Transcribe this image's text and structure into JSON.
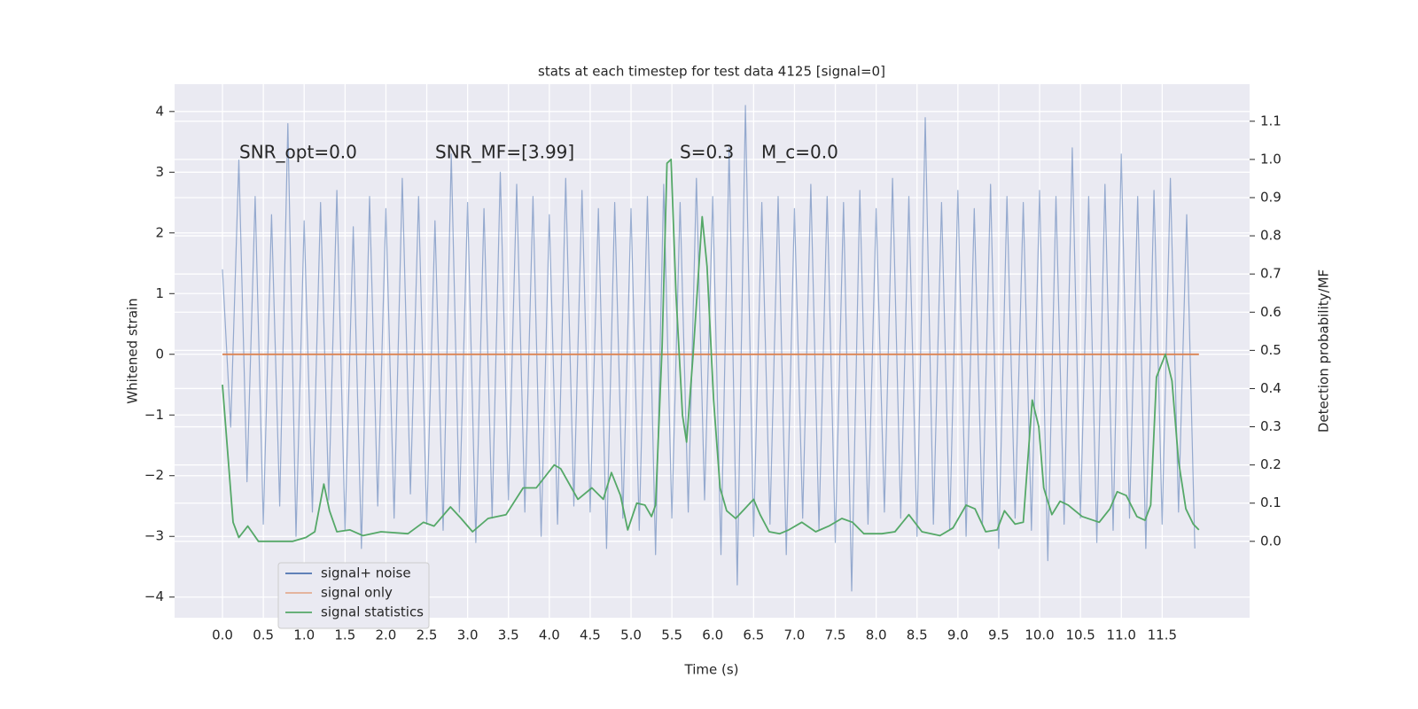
{
  "chart_data": {
    "type": "line",
    "title": "stats at each timestep for test data 4125 [signal=0]",
    "x_label": "Time (s)",
    "y_label": "Whitened strain",
    "y2_label": "Detection probability/MF",
    "annotations": [
      "SNR_opt=0.0",
      "SNR_MF=[3.99]",
      "S=0.3",
      "M_c=0.0"
    ],
    "xlim": [
      -0.586,
      12.57
    ],
    "ylim": [
      -4.34,
      4.45
    ],
    "y2lim": [
      -0.2,
      1.197
    ],
    "xticks": [
      {
        "value": 0,
        "label": "0.0"
      },
      {
        "value": 0.5,
        "label": "0.5"
      },
      {
        "value": 1,
        "label": "1.0"
      },
      {
        "value": 1.5,
        "label": "1.5"
      },
      {
        "value": 2,
        "label": "2.0"
      },
      {
        "value": 2.5,
        "label": "2.5"
      },
      {
        "value": 3,
        "label": "3.0"
      },
      {
        "value": 3.5,
        "label": "3.5"
      },
      {
        "value": 4,
        "label": "4.0"
      },
      {
        "value": 4.5,
        "label": "4.5"
      },
      {
        "value": 5,
        "label": "5.0"
      },
      {
        "value": 5.5,
        "label": "5.5"
      },
      {
        "value": 6,
        "label": "6.0"
      },
      {
        "value": 6.5,
        "label": "6.5"
      },
      {
        "value": 7,
        "label": "7.0"
      },
      {
        "value": 7.5,
        "label": "7.5"
      },
      {
        "value": 8,
        "label": "8.0"
      },
      {
        "value": 8.5,
        "label": "8.5"
      },
      {
        "value": 9,
        "label": "9.0"
      },
      {
        "value": 9.5,
        "label": "9.5"
      },
      {
        "value": 10,
        "label": "10.0"
      },
      {
        "value": 10.5,
        "label": "10.5"
      },
      {
        "value": 11,
        "label": "11.0"
      },
      {
        "value": 11.5,
        "label": "11.5"
      }
    ],
    "yticks": [
      {
        "value": -4,
        "label": "−4"
      },
      {
        "value": -3,
        "label": "−3"
      },
      {
        "value": -2,
        "label": "−2"
      },
      {
        "value": -1,
        "label": "−1"
      },
      0,
      1,
      2,
      3,
      4
    ],
    "y2ticks": [
      {
        "value": 0,
        "label": "0.0"
      },
      {
        "value": 0.1,
        "label": "0.1"
      },
      {
        "value": 0.2,
        "label": "0.2"
      },
      {
        "value": 0.3,
        "label": "0.3"
      },
      {
        "value": 0.4,
        "label": "0.4"
      },
      {
        "value": 0.5,
        "label": "0.5"
      },
      {
        "value": 0.6,
        "label": "0.6"
      },
      {
        "value": 0.7,
        "label": "0.7"
      },
      {
        "value": 0.8,
        "label": "0.8"
      },
      {
        "value": 0.9,
        "label": "0.9"
      },
      {
        "value": 1,
        "label": "1.0"
      },
      {
        "value": 1.1,
        "label": "1.1"
      }
    ],
    "grid": true,
    "legend": "lower left",
    "series": [
      {
        "name": "signal+ noise",
        "color": "#4c72b0",
        "axis": "y",
        "x": [
          0,
          0.1,
          0.2,
          0.3,
          0.4,
          0.5,
          0.6,
          0.7,
          0.8,
          0.9,
          1,
          1.1,
          1.2,
          1.3,
          1.4,
          1.5,
          1.6,
          1.7,
          1.8,
          1.9,
          2,
          2.1,
          2.2,
          2.3,
          2.4,
          2.5,
          2.6,
          2.7,
          2.8,
          2.9,
          3,
          3.1,
          3.2,
          3.3,
          3.4,
          3.5,
          3.6,
          3.7,
          3.8,
          3.9,
          4,
          4.1,
          4.2,
          4.3,
          4.4,
          4.5,
          4.6,
          4.7,
          4.8,
          4.9,
          5,
          5.1,
          5.2,
          5.3,
          5.4,
          5.5,
          5.6,
          5.7,
          5.8,
          5.9,
          6,
          6.1,
          6.2,
          6.3,
          6.4,
          6.5,
          6.6,
          6.7,
          6.8,
          6.9,
          7,
          7.1,
          7.2,
          7.3,
          7.4,
          7.5,
          7.6,
          7.7,
          7.8,
          7.9,
          8,
          8.1,
          8.2,
          8.3,
          8.4,
          8.5,
          8.6,
          8.7,
          8.8,
          8.9,
          9,
          9.1,
          9.2,
          9.3,
          9.4,
          9.5,
          9.6,
          9.7,
          9.8,
          9.9,
          10,
          10.1,
          10.2,
          10.3,
          10.4,
          10.5,
          10.6,
          10.7,
          10.8,
          10.9,
          11,
          11.1,
          11.2,
          11.3,
          11.4,
          11.5,
          11.6,
          11.7,
          11.8,
          11.9
        ],
        "values": [
          1.4,
          -1.2,
          3.2,
          -2.1,
          2.6,
          -2.8,
          2.3,
          -2.5,
          3.8,
          -3.0,
          2.2,
          -2.6,
          2.5,
          -2.4,
          2.7,
          -2.9,
          2.1,
          -3.2,
          2.6,
          -2.5,
          2.4,
          -2.7,
          2.9,
          -2.3,
          2.6,
          -2.8,
          2.2,
          -2.9,
          3.3,
          -2.6,
          2.5,
          -3.1,
          2.4,
          -2.7,
          3.0,
          -2.4,
          2.8,
          -2.6,
          2.6,
          -3.0,
          2.3,
          -2.8,
          2.9,
          -2.5,
          2.7,
          -2.6,
          2.4,
          -3.2,
          2.5,
          -2.7,
          2.4,
          -2.9,
          2.6,
          -3.3,
          2.8,
          -2.7,
          2.5,
          -2.6,
          2.9,
          -2.4,
          2.6,
          -3.3,
          3.4,
          -3.8,
          4.1,
          -3.0,
          2.5,
          -2.8,
          2.6,
          -3.3,
          2.4,
          -2.7,
          2.8,
          -2.9,
          2.6,
          -3.1,
          2.5,
          -3.9,
          2.7,
          -2.8,
          2.4,
          -2.6,
          2.9,
          -2.7,
          2.6,
          -3.0,
          3.9,
          -2.8,
          2.5,
          -2.9,
          2.7,
          -3.0,
          2.4,
          -2.8,
          2.8,
          -3.2,
          2.6,
          -2.7,
          2.5,
          -2.9,
          2.7,
          -3.4,
          2.6,
          -2.8,
          3.4,
          -2.7,
          2.6,
          -3.1,
          2.8,
          -2.9,
          3.3,
          -2.7,
          2.6,
          -3.2,
          2.7,
          -2.8,
          2.9,
          -2.6,
          2.3,
          -3.2
        ]
      },
      {
        "name": "signal only",
        "color": "#dd8452",
        "axis": "y",
        "x": [
          0,
          11.95
        ],
        "values": [
          0,
          0
        ]
      },
      {
        "name": "signal statistics",
        "color": "#55a868",
        "axis": "y2",
        "x": [
          0,
          0.13,
          0.2,
          0.31,
          0.44,
          0.64,
          0.86,
          1.02,
          1.13,
          1.24,
          1.31,
          1.4,
          1.56,
          1.72,
          1.94,
          2.27,
          2.46,
          2.59,
          2.79,
          2.92,
          3.06,
          3.25,
          3.47,
          3.68,
          3.84,
          4.06,
          4.14,
          4.35,
          4.52,
          4.66,
          4.76,
          4.87,
          4.96,
          5.07,
          5.17,
          5.25,
          5.3,
          5.38,
          5.44,
          5.49,
          5.55,
          5.63,
          5.68,
          5.76,
          5.87,
          5.93,
          6.01,
          6.09,
          6.17,
          6.28,
          6.39,
          6.5,
          6.58,
          6.69,
          6.82,
          6.93,
          7.09,
          7.26,
          7.42,
          7.58,
          7.71,
          7.85,
          8.07,
          8.23,
          8.4,
          8.56,
          8.78,
          8.94,
          9.1,
          9.21,
          9.34,
          9.48,
          9.57,
          9.7,
          9.8,
          9.91,
          9.99,
          10.05,
          10.15,
          10.25,
          10.35,
          10.52,
          10.73,
          10.86,
          10.95,
          11.06,
          11.19,
          11.29,
          11.36,
          11.43,
          11.54,
          11.62,
          11.7,
          11.79,
          11.88,
          11.95
        ],
        "values": [
          0.41,
          0.05,
          0.01,
          0.04,
          0.0,
          0.0,
          0.0,
          0.01,
          0.025,
          0.15,
          0.08,
          0.025,
          0.03,
          0.015,
          0.025,
          0.02,
          0.05,
          0.04,
          0.09,
          0.06,
          0.025,
          0.06,
          0.07,
          0.14,
          0.14,
          0.2,
          0.19,
          0.11,
          0.14,
          0.11,
          0.18,
          0.12,
          0.03,
          0.1,
          0.095,
          0.065,
          0.095,
          0.51,
          0.99,
          1.0,
          0.65,
          0.33,
          0.26,
          0.49,
          0.85,
          0.72,
          0.37,
          0.14,
          0.08,
          0.06,
          0.085,
          0.11,
          0.07,
          0.025,
          0.02,
          0.03,
          0.05,
          0.025,
          0.04,
          0.06,
          0.05,
          0.02,
          0.02,
          0.025,
          0.07,
          0.025,
          0.015,
          0.035,
          0.095,
          0.085,
          0.025,
          0.03,
          0.08,
          0.045,
          0.05,
          0.37,
          0.3,
          0.14,
          0.07,
          0.105,
          0.095,
          0.065,
          0.05,
          0.085,
          0.13,
          0.12,
          0.065,
          0.055,
          0.095,
          0.43,
          0.49,
          0.42,
          0.21,
          0.085,
          0.045,
          0.03
        ]
      }
    ]
  }
}
